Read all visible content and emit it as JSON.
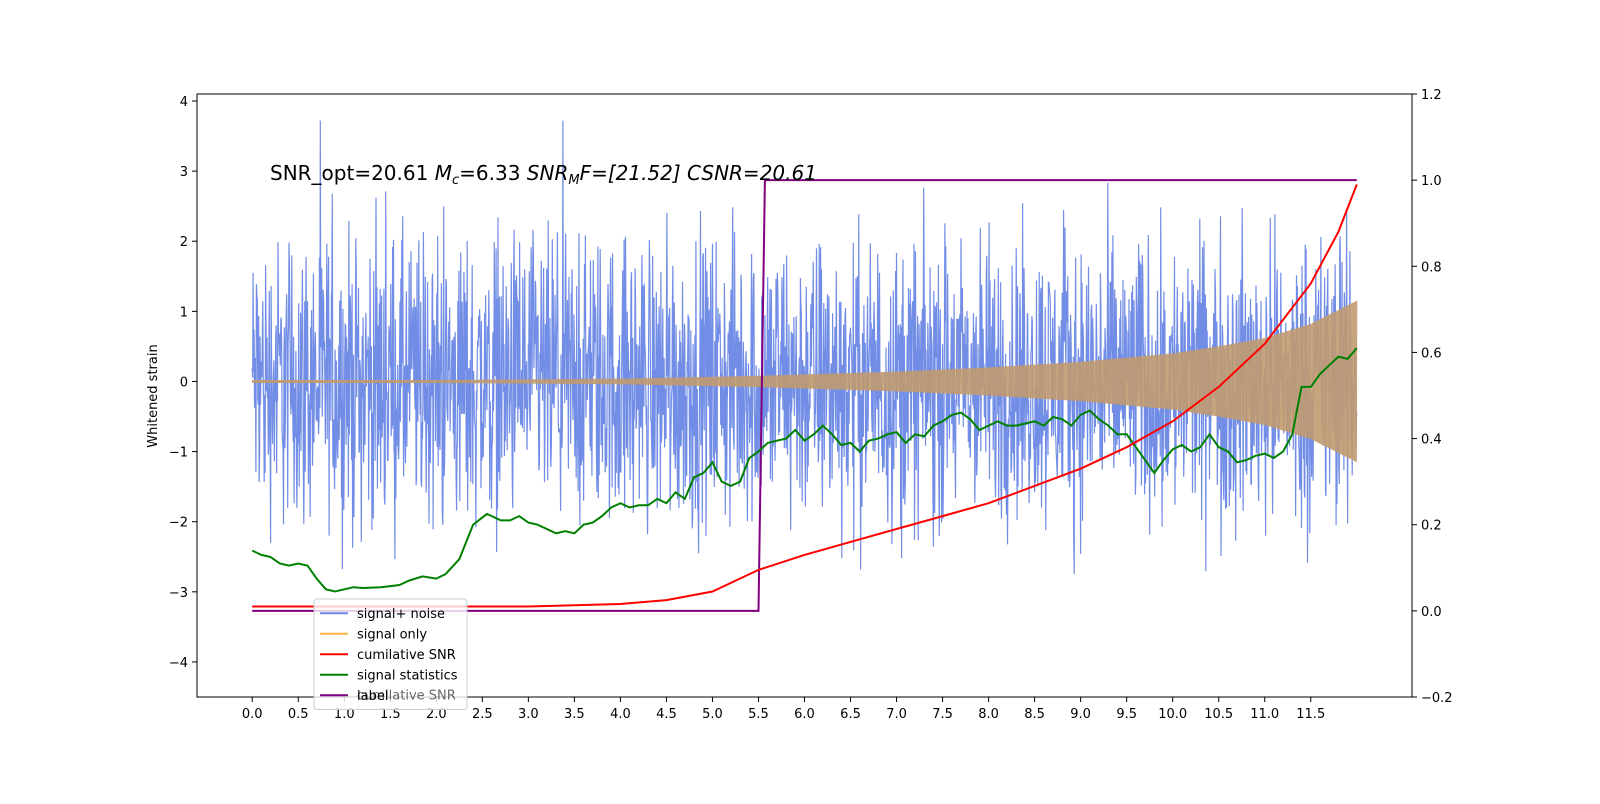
{
  "chart_data": {
    "type": "line",
    "title": "",
    "annotation": {
      "parts": [
        "SNR_opt=20.61 ",
        "M",
        "c",
        "=6.33    ",
        "SNR",
        "M",
        "F=[21.52] CSNR=20.61"
      ]
    },
    "ylabel": "Whitened strain",
    "xlabel": "",
    "xlim": [
      -0.6,
      12.6
    ],
    "ylim": [
      -4.5,
      4.1
    ],
    "y2lim": [
      -0.2,
      1.2
    ],
    "x_ticks": [
      "0.0",
      "0.5",
      "1.0",
      "1.5",
      "2.0",
      "2.5",
      "3.0",
      "3.5",
      "4.0",
      "4.5",
      "5.0",
      "5.5",
      "6.0",
      "6.5",
      "7.0",
      "7.5",
      "8.0",
      "8.5",
      "9.0",
      "9.5",
      "10.0",
      "10.5",
      "11.0",
      "11.5"
    ],
    "y_ticks": [
      "4",
      "3",
      "2",
      "1",
      "0",
      "−1",
      "−2",
      "−3",
      "−4"
    ],
    "y2_ticks": [
      "1.2",
      "1.0",
      "0.8",
      "0.6",
      "0.4",
      "0.2",
      "0.0",
      "−0.2"
    ],
    "grid": false,
    "legend_position": "lower-left",
    "legend": [
      {
        "label": "signal+ noise",
        "color": "#6a87e5"
      },
      {
        "label": "signal only",
        "color": "#ffb347"
      },
      {
        "label": "cumilative SNR",
        "color": "#ff0000"
      },
      {
        "label": "signal statistics",
        "color": "#008000"
      },
      {
        "label": "label",
        "color": "#800080"
      }
    ],
    "legend_hidden_text": "cumilative SNR",
    "series": [
      {
        "name": "signal+ noise",
        "axis": "left",
        "color": "#6a87e5",
        "x_range": [
          0.0,
          12.0
        ],
        "mean_level": 0.0,
        "upper_envelope_typical": 2.0,
        "lower_envelope_typical": -2.0,
        "max": 3.72,
        "min": -4.1
      },
      {
        "name": "signal only",
        "axis": "left",
        "color": "#c09a70",
        "x_range": [
          0.0,
          12.0
        ],
        "amplitude_points": [
          [
            0,
            0.02
          ],
          [
            2,
            0.02
          ],
          [
            4,
            0.04
          ],
          [
            5.5,
            0.08
          ],
          [
            7,
            0.14
          ],
          [
            8,
            0.2
          ],
          [
            9,
            0.28
          ],
          [
            10,
            0.4
          ],
          [
            10.5,
            0.5
          ],
          [
            11,
            0.62
          ],
          [
            11.5,
            0.82
          ],
          [
            12,
            1.15
          ]
        ]
      },
      {
        "name": "cumilative SNR",
        "axis": "right",
        "color": "#ff0000",
        "points": [
          [
            0,
            0.01
          ],
          [
            2,
            0.01
          ],
          [
            3,
            0.01
          ],
          [
            4,
            0.016
          ],
          [
            4.5,
            0.025
          ],
          [
            5,
            0.045
          ],
          [
            5.5,
            0.095
          ],
          [
            6,
            0.13
          ],
          [
            6.5,
            0.16
          ],
          [
            7,
            0.19
          ],
          [
            7.5,
            0.22
          ],
          [
            8,
            0.25
          ],
          [
            8.5,
            0.29
          ],
          [
            9,
            0.33
          ],
          [
            9.5,
            0.38
          ],
          [
            10,
            0.44
          ],
          [
            10.5,
            0.52
          ],
          [
            11,
            0.62
          ],
          [
            11.5,
            0.76
          ],
          [
            11.8,
            0.88
          ],
          [
            12,
            0.99
          ]
        ]
      },
      {
        "name": "signal statistics",
        "axis": "right",
        "color": "#008000",
        "points": [
          [
            0,
            0.14
          ],
          [
            0.1,
            0.13
          ],
          [
            0.2,
            0.125
          ],
          [
            0.3,
            0.11
          ],
          [
            0.4,
            0.105
          ],
          [
            0.5,
            0.11
          ],
          [
            0.6,
            0.105
          ],
          [
            0.7,
            0.075
          ],
          [
            0.8,
            0.05
          ],
          [
            0.9,
            0.045
          ],
          [
            1.0,
            0.05
          ],
          [
            1.1,
            0.055
          ],
          [
            1.2,
            0.053
          ],
          [
            1.4,
            0.055
          ],
          [
            1.6,
            0.06
          ],
          [
            1.7,
            0.07
          ],
          [
            1.85,
            0.08
          ],
          [
            2.0,
            0.075
          ],
          [
            2.1,
            0.085
          ],
          [
            2.25,
            0.12
          ],
          [
            2.4,
            0.2
          ],
          [
            2.55,
            0.225
          ],
          [
            2.7,
            0.21
          ],
          [
            2.8,
            0.21
          ],
          [
            2.9,
            0.22
          ],
          [
            3.0,
            0.205
          ],
          [
            3.1,
            0.2
          ],
          [
            3.2,
            0.19
          ],
          [
            3.3,
            0.18
          ],
          [
            3.4,
            0.185
          ],
          [
            3.5,
            0.18
          ],
          [
            3.6,
            0.2
          ],
          [
            3.7,
            0.205
          ],
          [
            3.8,
            0.22
          ],
          [
            3.9,
            0.24
          ],
          [
            4.0,
            0.25
          ],
          [
            4.1,
            0.24
          ],
          [
            4.2,
            0.245
          ],
          [
            4.3,
            0.245
          ],
          [
            4.4,
            0.26
          ],
          [
            4.5,
            0.25
          ],
          [
            4.6,
            0.275
          ],
          [
            4.7,
            0.26
          ],
          [
            4.8,
            0.31
          ],
          [
            4.9,
            0.32
          ],
          [
            5.0,
            0.345
          ],
          [
            5.1,
            0.3
          ],
          [
            5.2,
            0.29
          ],
          [
            5.3,
            0.3
          ],
          [
            5.4,
            0.355
          ],
          [
            5.5,
            0.37
          ],
          [
            5.6,
            0.39
          ],
          [
            5.7,
            0.395
          ],
          [
            5.8,
            0.4
          ],
          [
            5.9,
            0.42
          ],
          [
            6.0,
            0.395
          ],
          [
            6.1,
            0.41
          ],
          [
            6.2,
            0.43
          ],
          [
            6.3,
            0.41
          ],
          [
            6.4,
            0.385
          ],
          [
            6.5,
            0.39
          ],
          [
            6.6,
            0.37
          ],
          [
            6.7,
            0.395
          ],
          [
            6.8,
            0.4
          ],
          [
            6.9,
            0.41
          ],
          [
            7.0,
            0.415
          ],
          [
            7.1,
            0.39
          ],
          [
            7.2,
            0.41
          ],
          [
            7.3,
            0.405
          ],
          [
            7.4,
            0.43
          ],
          [
            7.5,
            0.44
          ],
          [
            7.6,
            0.455
          ],
          [
            7.7,
            0.46
          ],
          [
            7.8,
            0.445
          ],
          [
            7.9,
            0.42
          ],
          [
            8.0,
            0.43
          ],
          [
            8.1,
            0.44
          ],
          [
            8.2,
            0.43
          ],
          [
            8.3,
            0.43
          ],
          [
            8.4,
            0.435
          ],
          [
            8.5,
            0.44
          ],
          [
            8.6,
            0.43
          ],
          [
            8.7,
            0.45
          ],
          [
            8.8,
            0.445
          ],
          [
            8.9,
            0.43
          ],
          [
            9.0,
            0.455
          ],
          [
            9.1,
            0.465
          ],
          [
            9.2,
            0.445
          ],
          [
            9.3,
            0.43
          ],
          [
            9.4,
            0.41
          ],
          [
            9.5,
            0.41
          ],
          [
            9.6,
            0.38
          ],
          [
            9.7,
            0.35
          ],
          [
            9.8,
            0.32
          ],
          [
            9.9,
            0.35
          ],
          [
            10.0,
            0.375
          ],
          [
            10.1,
            0.385
          ],
          [
            10.2,
            0.37
          ],
          [
            10.3,
            0.38
          ],
          [
            10.4,
            0.41
          ],
          [
            10.5,
            0.38
          ],
          [
            10.6,
            0.37
          ],
          [
            10.7,
            0.345
          ],
          [
            10.8,
            0.35
          ],
          [
            10.9,
            0.36
          ],
          [
            11.0,
            0.365
          ],
          [
            11.1,
            0.355
          ],
          [
            11.2,
            0.37
          ],
          [
            11.3,
            0.41
          ],
          [
            11.4,
            0.52
          ],
          [
            11.5,
            0.52
          ],
          [
            11.6,
            0.55
          ],
          [
            11.7,
            0.57
          ],
          [
            11.8,
            0.59
          ],
          [
            11.9,
            0.585
          ],
          [
            12.0,
            0.61
          ]
        ]
      },
      {
        "name": "label",
        "axis": "right",
        "color": "#800080",
        "points": [
          [
            0,
            0.0
          ],
          [
            5.5,
            0.0
          ],
          [
            5.57,
            1.0
          ],
          [
            12,
            1.0
          ]
        ]
      }
    ]
  }
}
